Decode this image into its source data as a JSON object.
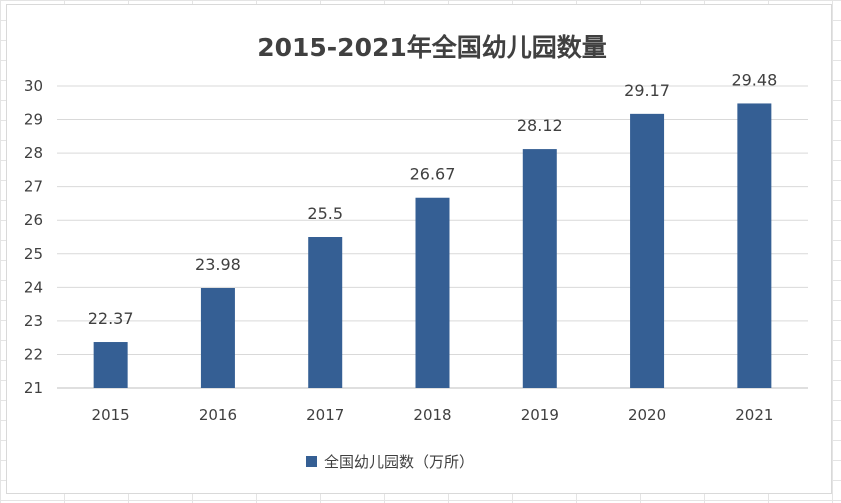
{
  "chart_data": {
    "type": "bar",
    "title": "2015-2021年全国幼儿园数量",
    "xlabel": "",
    "ylabel": "",
    "categories": [
      "2015",
      "2016",
      "2017",
      "2018",
      "2019",
      "2020",
      "2021"
    ],
    "series": [
      {
        "name": "全国幼儿园数（万所）",
        "values": [
          22.37,
          23.98,
          25.5,
          26.67,
          28.12,
          29.17,
          29.48
        ],
        "color": "#355f94"
      }
    ],
    "data_labels": [
      "22.37",
      "23.98",
      "25.5",
      "26.67",
      "28.12",
      "29.17",
      "29.48"
    ],
    "ylim": [
      21,
      30
    ],
    "yticks": [
      "21",
      "22",
      "23",
      "24",
      "25",
      "26",
      "27",
      "28",
      "29",
      "30"
    ],
    "grid": true,
    "legend_position": "bottom"
  }
}
